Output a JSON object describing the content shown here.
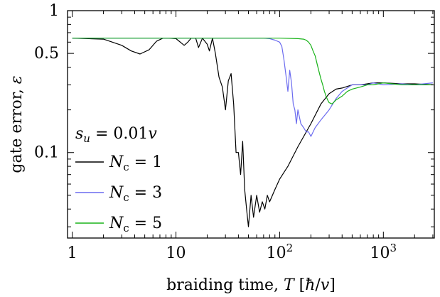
{
  "chart_data": {
    "type": "line",
    "title": "",
    "xlabel": "braiding time, T [ħ/v]",
    "ylabel": "gate error, ε",
    "xscale": "log",
    "yscale": "log",
    "xlim": [
      0.9,
      3100
    ],
    "ylim": [
      0.025,
      1.0
    ],
    "x_ticks": [
      {
        "value": 1,
        "label": "1"
      },
      {
        "value": 10,
        "label": "10"
      },
      {
        "value": 100,
        "label": "10",
        "exp": "2"
      },
      {
        "value": 1000,
        "label": "10",
        "exp": "3"
      }
    ],
    "y_ticks": [
      {
        "value": 0.1,
        "label": "0.1"
      },
      {
        "value": 0.5,
        "label": "0.5"
      },
      {
        "value": 1,
        "label": "1"
      }
    ],
    "legend": {
      "placement": "left",
      "header": "s_u = 0.01v",
      "entries": [
        {
          "label_main": "N",
          "label_sub": "c",
          "label_rest": " = 1",
          "color": "#000000"
        },
        {
          "label_main": "N",
          "label_sub": "c",
          "label_rest": " = 3",
          "color": "#6b6bef"
        },
        {
          "label_main": "N",
          "label_sub": "c",
          "label_rest": " = 5",
          "color": "#19b319"
        }
      ]
    },
    "series": [
      {
        "name": "Nc = 1",
        "color": "#000000",
        "x": [
          1,
          2,
          3,
          3.7,
          4.5,
          5.5,
          6.5,
          7.5,
          8.5,
          10,
          12,
          13,
          14,
          15.5,
          16.5,
          18,
          20,
          21,
          22.5,
          24,
          26,
          28,
          30,
          32,
          34,
          36,
          38,
          40,
          42,
          44,
          46,
          48,
          50,
          53,
          56,
          60,
          64,
          68,
          72,
          76,
          80,
          90,
          100,
          120,
          150,
          200,
          250,
          300,
          350,
          400,
          500,
          600,
          700,
          800,
          1000,
          1500,
          2000,
          3000
        ],
        "y": [
          0.64,
          0.63,
          0.57,
          0.52,
          0.495,
          0.53,
          0.61,
          0.64,
          0.64,
          0.635,
          0.57,
          0.6,
          0.64,
          0.64,
          0.55,
          0.64,
          0.58,
          0.52,
          0.64,
          0.5,
          0.34,
          0.29,
          0.2,
          0.32,
          0.36,
          0.22,
          0.1,
          0.1,
          0.07,
          0.12,
          0.055,
          0.04,
          0.03,
          0.05,
          0.035,
          0.05,
          0.038,
          0.045,
          0.04,
          0.05,
          0.045,
          0.055,
          0.065,
          0.08,
          0.11,
          0.16,
          0.22,
          0.26,
          0.28,
          0.285,
          0.3,
          0.3,
          0.305,
          0.31,
          0.31,
          0.305,
          0.305,
          0.3
        ]
      },
      {
        "name": "Nc = 3",
        "color": "#6b6bef",
        "x": [
          1,
          30,
          60,
          70,
          80,
          90,
          100,
          105,
          110,
          115,
          120,
          125,
          130,
          135,
          140,
          145,
          150,
          160,
          170,
          180,
          190,
          200,
          220,
          250,
          300,
          350,
          400,
          500,
          600,
          700,
          800,
          1000,
          1500,
          2000,
          3000
        ],
        "y": [
          0.64,
          0.64,
          0.64,
          0.64,
          0.635,
          0.62,
          0.6,
          0.56,
          0.45,
          0.35,
          0.27,
          0.38,
          0.31,
          0.22,
          0.2,
          0.16,
          0.2,
          0.16,
          0.15,
          0.14,
          0.14,
          0.13,
          0.15,
          0.17,
          0.2,
          0.24,
          0.27,
          0.3,
          0.3,
          0.3,
          0.31,
          0.3,
          0.305,
          0.3,
          0.31
        ]
      },
      {
        "name": "Nc = 5",
        "color": "#19b319",
        "x": [
          1,
          50,
          100,
          150,
          170,
          180,
          190,
          200,
          210,
          220,
          230,
          240,
          250,
          260,
          270,
          280,
          290,
          300,
          320,
          350,
          400,
          450,
          500,
          600,
          700,
          800,
          1000,
          1500,
          2000,
          3000
        ],
        "y": [
          0.64,
          0.64,
          0.64,
          0.635,
          0.63,
          0.62,
          0.6,
          0.57,
          0.52,
          0.48,
          0.42,
          0.37,
          0.33,
          0.3,
          0.27,
          0.25,
          0.235,
          0.225,
          0.22,
          0.235,
          0.25,
          0.27,
          0.28,
          0.29,
          0.3,
          0.3,
          0.31,
          0.3,
          0.3,
          0.3
        ]
      }
    ]
  }
}
